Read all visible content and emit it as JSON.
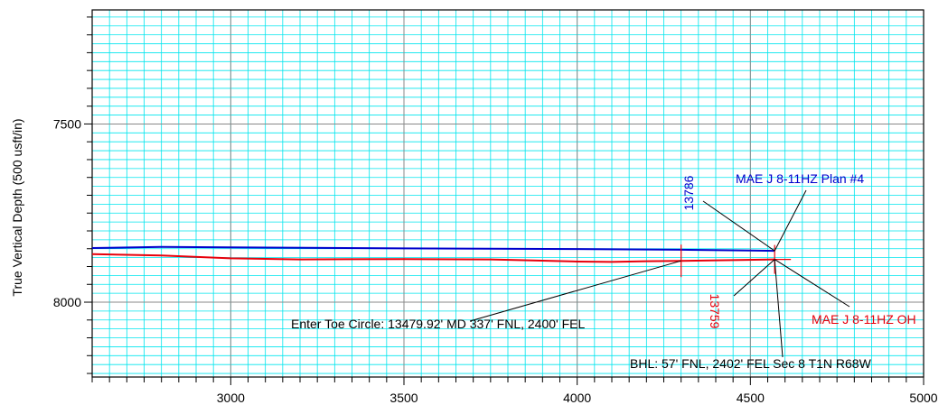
{
  "chart_data": {
    "type": "line",
    "title": "",
    "xlabel": "",
    "ylabel": "True Vertical Depth (500 usft/in)",
    "xlim": [
      2600,
      5000
    ],
    "ylim": [
      7180,
      8210
    ],
    "y_inverted": true,
    "grid": true,
    "x_ticks": [
      3000,
      3500,
      4000,
      4500,
      5000
    ],
    "y_ticks": [
      7500,
      8000
    ],
    "colors": {
      "grid_minor": "#00e5ee",
      "grid_major": "#888888",
      "plan": "#0000cc",
      "actual": "#e8000b",
      "annotation": "#000000"
    },
    "series": [
      {
        "name": "MAE J 8-11HZ Plan #4",
        "color": "#0000cc",
        "x": [
          2600,
          2800,
          3000,
          3500,
          4000,
          4300,
          4500,
          4570
        ],
        "y": [
          7848,
          7845,
          7846,
          7849,
          7851,
          7853,
          7855,
          7856
        ]
      },
      {
        "name": "MAE J 8-11HZ OH",
        "color": "#e8000b",
        "x": [
          2600,
          2800,
          3000,
          3200,
          3500,
          3750,
          4000,
          4100,
          4200,
          4300,
          4450,
          4570
        ],
        "y": [
          7865,
          7869,
          7877,
          7880,
          7879,
          7880,
          7886,
          7887,
          7885,
          7884,
          7882,
          7880
        ]
      }
    ],
    "annotations": [
      {
        "id": "plan-label",
        "text": "MAE J 8-11HZ Plan #4",
        "color": "#0000cc"
      },
      {
        "id": "plan-md",
        "text": "13786",
        "color": "#0000cc",
        "rotated": true
      },
      {
        "id": "oh-label",
        "text": "MAE J 8-11HZ OH",
        "color": "#e8000b"
      },
      {
        "id": "oh-md",
        "text": "13759",
        "color": "#e8000b",
        "rotated": true
      },
      {
        "id": "toe-circle",
        "text": "Enter Toe Circle: 13479.92' MD 337' FNL, 2400' FEL",
        "color": "#000000"
      },
      {
        "id": "bhl",
        "text": "BHL: 57' FNL, 2402' FEL Sec 8 T1N R68W",
        "color": "#000000"
      }
    ]
  }
}
